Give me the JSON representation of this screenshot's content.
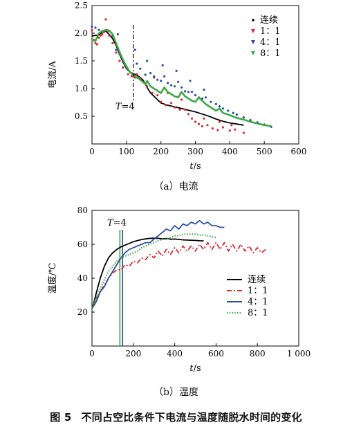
{
  "colors": {
    "continuous": "#000000",
    "r11": "#e0262d",
    "r41": "#2b4da3",
    "r81": "#3aa843",
    "marker_v1": "#3aa843",
    "marker_v2": "#2b4da3"
  },
  "chart_data": [
    {
      "type": "line",
      "caption": "（a）电流",
      "ylabel": "电流/A",
      "xlabel": "t/s",
      "xlim": [
        0,
        600
      ],
      "ylim": [
        0.0,
        2.5
      ],
      "xticks": [
        0,
        100,
        200,
        300,
        400,
        500,
        600
      ],
      "yticks": [
        0.5,
        1.0,
        1.5,
        2.0,
        2.5
      ],
      "ytick_labels": [
        "0.5",
        "1.0",
        "1.5",
        "2.0",
        "2.5"
      ],
      "legend_position": "top-right",
      "annotation": {
        "text": "T=4",
        "x": 120
      },
      "series": [
        {
          "name": "连续",
          "style": "line",
          "color": "#000000",
          "x": [
            0,
            10,
            20,
            30,
            40,
            50,
            60,
            70,
            80,
            90,
            100,
            110,
            120,
            130,
            140,
            150,
            160,
            170,
            180,
            190,
            200,
            220,
            240,
            260,
            280,
            300,
            320,
            340,
            360,
            380,
            400,
            420,
            440
          ],
          "y": [
            1.95,
            1.96,
            1.97,
            2.02,
            2.04,
            1.98,
            1.9,
            1.78,
            1.62,
            1.48,
            1.36,
            1.3,
            1.27,
            1.24,
            1.2,
            1.14,
            1.02,
            0.92,
            0.86,
            0.8,
            0.74,
            0.7,
            0.67,
            0.64,
            0.61,
            0.58,
            0.54,
            0.5,
            0.45,
            0.41,
            0.38,
            0.36,
            0.34
          ]
        },
        {
          "name": "1：1",
          "style": "dashdot",
          "color": "#e0262d",
          "x": [
            0,
            5,
            10,
            15,
            20,
            25,
            30,
            35,
            40,
            45,
            50,
            60,
            70,
            80,
            90,
            95,
            105,
            115,
            125,
            130,
            140,
            150,
            160,
            175,
            180,
            190,
            200,
            215,
            220,
            230,
            240,
            255,
            260,
            270,
            280,
            290,
            300,
            310,
            320,
            325,
            335,
            350,
            365,
            370,
            380,
            400,
            405,
            415,
            440
          ],
          "y": [
            2.05,
            1.88,
            1.82,
            1.8,
            1.92,
            1.96,
            1.98,
            2.02,
            2.25,
            2.05,
            1.96,
            1.82,
            1.65,
            1.5,
            1.38,
            1.44,
            1.26,
            1.22,
            1.2,
            1.26,
            1.18,
            1.12,
            1.04,
            0.92,
            1.2,
            0.88,
            0.76,
            0.7,
            0.92,
            0.74,
            0.66,
            0.62,
            0.8,
            0.62,
            0.54,
            0.46,
            0.4,
            0.36,
            0.32,
            0.46,
            0.34,
            0.28,
            0.25,
            0.4,
            0.3,
            0.24,
            0.34,
            0.26,
            0.2
          ]
        },
        {
          "name": "4：1",
          "style": "dotted",
          "color": "#2b4da3",
          "x": [
            0,
            10,
            20,
            30,
            40,
            50,
            60,
            70,
            75,
            80,
            90,
            100,
            120,
            125,
            130,
            140,
            155,
            160,
            170,
            180,
            190,
            200,
            205,
            210,
            220,
            230,
            240,
            245,
            250,
            260,
            270,
            280,
            285,
            290,
            300,
            310,
            320,
            325,
            330,
            345,
            360,
            370,
            380,
            395,
            410,
            420,
            440,
            460,
            480,
            500,
            520
          ],
          "y": [
            2.12,
            2.1,
            2.06,
            2.04,
            2.05,
            2.04,
            1.95,
            1.7,
            1.98,
            1.62,
            1.48,
            1.38,
            1.26,
            1.7,
            1.45,
            1.36,
            1.25,
            1.5,
            1.28,
            1.22,
            1.16,
            1.14,
            1.42,
            1.22,
            1.1,
            1.06,
            1.04,
            1.32,
            1.12,
            1.02,
            0.95,
            0.94,
            1.14,
            0.94,
            0.88,
            0.84,
            0.82,
            0.98,
            0.84,
            0.76,
            0.72,
            0.68,
            0.64,
            0.6,
            0.56,
            0.53,
            0.48,
            0.43,
            0.39,
            0.35,
            0.31
          ]
        },
        {
          "name": "8：1",
          "style": "line",
          "color": "#3aa843",
          "x": [
            0,
            10,
            20,
            30,
            40,
            50,
            60,
            70,
            80,
            90,
            100,
            110,
            120,
            130,
            140,
            155,
            160,
            170,
            180,
            190,
            200,
            210,
            220,
            230,
            240,
            250,
            260,
            270,
            280,
            290,
            300,
            310,
            320,
            330,
            340,
            360,
            370,
            380,
            400,
            420,
            440,
            460,
            480,
            500,
            520
          ],
          "y": [
            1.88,
            1.86,
            2.0,
            2.04,
            2.06,
            2.05,
            1.98,
            1.82,
            1.66,
            1.52,
            1.4,
            1.3,
            1.24,
            1.2,
            1.16,
            1.08,
            1.14,
            1.04,
            1.0,
            0.96,
            0.92,
            1.02,
            0.94,
            0.9,
            0.86,
            0.84,
            0.94,
            0.86,
            0.82,
            0.78,
            0.76,
            0.84,
            0.78,
            0.72,
            0.68,
            0.6,
            0.64,
            0.56,
            0.52,
            0.47,
            0.44,
            0.4,
            0.37,
            0.34,
            0.32
          ]
        }
      ]
    },
    {
      "type": "line",
      "caption": "（b）温度",
      "ylabel": "温度/℃",
      "xlabel": "t/s",
      "xlim": [
        0,
        1000
      ],
      "ylim": [
        0,
        80
      ],
      "xticks": [
        0,
        200,
        400,
        600,
        800,
        1000
      ],
      "xtick_labels": [
        "0",
        "200",
        "400",
        "600",
        "800",
        "1 000"
      ],
      "yticks": [
        20,
        40,
        60,
        80
      ],
      "legend_position": "right",
      "annotation": {
        "text": "T=4",
        "x": 140
      },
      "vlines": [
        {
          "x": 135,
          "color": "#3aa843"
        },
        {
          "x": 148,
          "color": "#2b4da3"
        }
      ],
      "series": [
        {
          "name": "连续",
          "style": "line",
          "color": "#000000",
          "x": [
            0,
            10,
            20,
            40,
            60,
            80,
            100,
            120,
            140,
            160,
            180,
            200,
            220,
            240,
            260,
            280,
            300,
            320,
            340,
            360,
            380,
            400,
            420,
            440,
            460,
            480,
            500,
            520,
            540
          ],
          "y": [
            22,
            26,
            31,
            40,
            47,
            52,
            55,
            57,
            58.5,
            59.5,
            60.5,
            61.5,
            62.2,
            62.8,
            63.2,
            63.5,
            63.6,
            63.5,
            63.2,
            63.4,
            63.0,
            63.1,
            62.9,
            62.6,
            62.5,
            62.4,
            62.3,
            62.1,
            62.0
          ]
        },
        {
          "name": "1：1",
          "style": "dashdot",
          "color": "#e0262d",
          "x": [
            0,
            20,
            40,
            60,
            80,
            100,
            120,
            140,
            160,
            180,
            200,
            220,
            240,
            260,
            280,
            300,
            320,
            340,
            360,
            380,
            400,
            420,
            440,
            460,
            480,
            500,
            520,
            540,
            560,
            580,
            600,
            620,
            640,
            660,
            680,
            700,
            720,
            740,
            760,
            780,
            800,
            820,
            840
          ],
          "y": [
            22,
            28,
            32,
            36,
            40,
            43,
            45,
            45,
            48,
            47,
            50,
            49,
            52,
            51,
            54,
            52,
            56,
            53,
            57,
            54,
            58,
            55,
            59,
            56,
            59,
            56,
            60,
            57,
            61,
            57,
            61,
            57,
            61,
            56,
            60,
            56,
            60,
            56,
            59,
            55,
            58,
            55,
            57
          ]
        },
        {
          "name": "4：1",
          "style": "line",
          "color": "#2b4da3",
          "x": [
            0,
            20,
            40,
            60,
            80,
            100,
            120,
            140,
            160,
            180,
            200,
            220,
            240,
            260,
            280,
            300,
            320,
            340,
            360,
            380,
            400,
            420,
            440,
            460,
            480,
            500,
            520,
            540,
            560,
            580,
            600,
            620,
            640
          ],
          "y": [
            22,
            26,
            32,
            35,
            40,
            44,
            48,
            52,
            55,
            57,
            58,
            59,
            60,
            61,
            61,
            63,
            65,
            67,
            69,
            68,
            71,
            69,
            72,
            71,
            73,
            72,
            74,
            72,
            73,
            71,
            71,
            70,
            70
          ]
        },
        {
          "name": "8：1",
          "style": "dotted",
          "color": "#3aa843",
          "x": [
            0,
            20,
            40,
            60,
            80,
            100,
            120,
            140,
            160,
            180,
            200,
            220,
            240,
            260,
            280,
            300,
            320,
            340,
            360,
            380,
            400,
            420,
            440,
            460,
            480,
            500,
            520,
            540,
            560,
            580,
            600
          ],
          "y": [
            22,
            28,
            34,
            39,
            44,
            47,
            50,
            52,
            53,
            54,
            55,
            56,
            58,
            59,
            60,
            61,
            62,
            63,
            63,
            64,
            65,
            65,
            66,
            66,
            66,
            66,
            65.5,
            65.5,
            65,
            64.5,
            64
          ]
        }
      ]
    }
  ],
  "caption": {
    "figure_number": "图 5",
    "text": "不同占空比条件下电流与温度随脱水时间的变化"
  }
}
